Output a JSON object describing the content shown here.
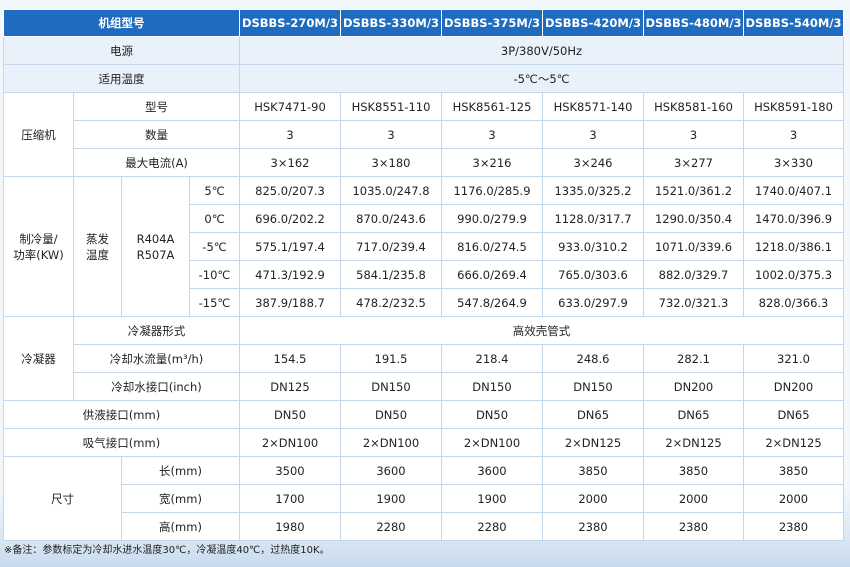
{
  "header": {
    "title": "机组型号",
    "models": [
      "DSBBS-270M/3",
      "DSBBS-330M/3",
      "DSBBS-375M/3",
      "DSBBS-420M/3",
      "DSBBS-480M/3",
      "DSBBS-540M/3"
    ]
  },
  "power": {
    "label": "电源",
    "value": "3P/380V/50Hz"
  },
  "temp_range": {
    "label": "适用温度",
    "value": "-5℃～5℃"
  },
  "compressor": {
    "group": "压缩机",
    "rows": [
      {
        "label": "型号",
        "values": [
          "HSK7471-90",
          "HSK8551-110",
          "HSK8561-125",
          "HSK8571-140",
          "HSK8581-160",
          "HSK8591-180"
        ]
      },
      {
        "label": "数量",
        "values": [
          "3",
          "3",
          "3",
          "3",
          "3",
          "3"
        ]
      },
      {
        "label": "最大电流(A)",
        "values": [
          "3×162",
          "3×180",
          "3×216",
          "3×246",
          "3×277",
          "3×330"
        ]
      }
    ]
  },
  "cooling": {
    "group_line1": "制冷量/",
    "group_line2": "功率(KW)",
    "evap_line1": "蒸发",
    "evap_line2": "温度",
    "refrig_line1": "R404A",
    "refrig_line2": "R507A",
    "rows": [
      {
        "temp": "5℃",
        "values": [
          "825.0/207.3",
          "1035.0/247.8",
          "1176.0/285.9",
          "1335.0/325.2",
          "1521.0/361.2",
          "1740.0/407.1"
        ]
      },
      {
        "temp": "0℃",
        "values": [
          "696.0/202.2",
          "870.0/243.6",
          "990.0/279.9",
          "1128.0/317.7",
          "1290.0/350.4",
          "1470.0/396.9"
        ]
      },
      {
        "temp": "-5℃",
        "values": [
          "575.1/197.4",
          "717.0/239.4",
          "816.0/274.5",
          "933.0/310.2",
          "1071.0/339.6",
          "1218.0/386.1"
        ]
      },
      {
        "temp": "-10℃",
        "values": [
          "471.3/192.9",
          "584.1/235.8",
          "666.0/269.4",
          "765.0/303.6",
          "882.0/329.7",
          "1002.0/375.3"
        ]
      },
      {
        "temp": "-15℃",
        "values": [
          "387.9/188.7",
          "478.2/232.5",
          "547.8/264.9",
          "633.0/297.9",
          "732.0/321.3",
          "828.0/366.3"
        ]
      }
    ]
  },
  "condenser": {
    "group": "冷凝器",
    "type_label": "冷凝器形式",
    "type_value": "高效壳管式",
    "flow_label": "冷却水流量(m³/h)",
    "flow_values": [
      "154.5",
      "191.5",
      "218.4",
      "248.6",
      "282.1",
      "321.0"
    ],
    "conn_label": "冷却水接口(inch)",
    "conn_values": [
      "DN125",
      "DN150",
      "DN150",
      "DN150",
      "DN200",
      "DN200"
    ]
  },
  "liquid": {
    "label": "供液接口(mm)",
    "values": [
      "DN50",
      "DN50",
      "DN50",
      "DN65",
      "DN65",
      "DN65"
    ]
  },
  "suction": {
    "label": "吸气接口(mm)",
    "values": [
      "2×DN100",
      "2×DN100",
      "2×DN100",
      "2×DN125",
      "2×DN125",
      "2×DN125"
    ]
  },
  "dimensions": {
    "group": "尺寸",
    "rows": [
      {
        "label": "长(mm)",
        "values": [
          "3500",
          "3600",
          "3600",
          "3850",
          "3850",
          "3850"
        ]
      },
      {
        "label": "宽(mm)",
        "values": [
          "1700",
          "1900",
          "1900",
          "2000",
          "2000",
          "2000"
        ]
      },
      {
        "label": "高(mm)",
        "values": [
          "1980",
          "2280",
          "2280",
          "2380",
          "2380",
          "2380"
        ]
      }
    ]
  },
  "footnote": "※备注：参数标定为冷却水进水温度30℃，冷凝温度40℃，过热度10K。"
}
